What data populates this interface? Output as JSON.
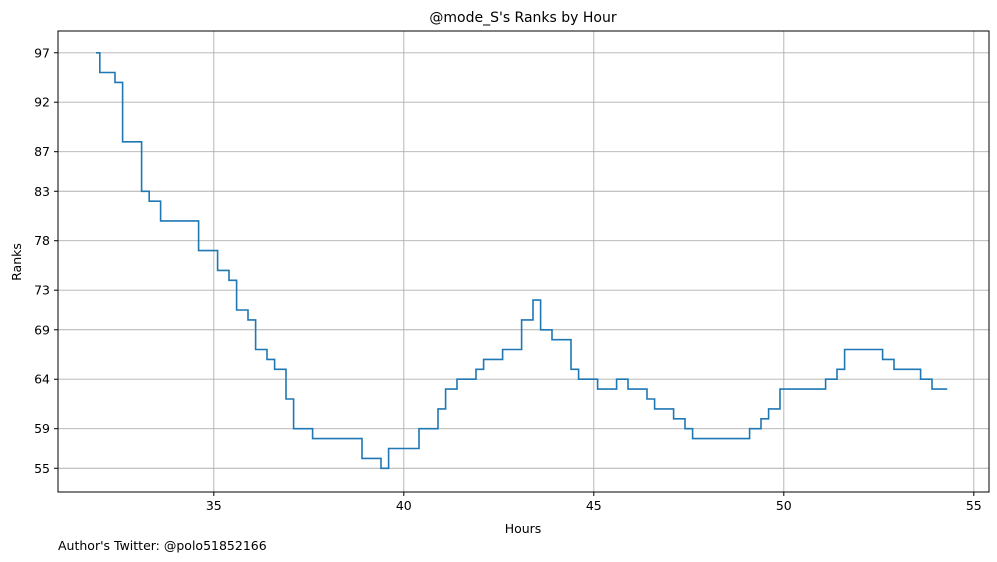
{
  "chart_data": {
    "type": "line",
    "title": "@mode_S's Ranks by Hour",
    "xlabel": "Hours",
    "ylabel": "Ranks",
    "xlim": [
      30.9,
      55.4
    ],
    "ylim": [
      99.2,
      52.6
    ],
    "y_inverted": true,
    "grid": true,
    "drawstyle": "steps-post",
    "line_color": "#1f77b4",
    "x_ticks": [
      35,
      40,
      45,
      50,
      55
    ],
    "y_tick_positions": [
      55,
      59,
      64,
      69,
      73,
      78,
      83,
      87,
      92,
      97
    ],
    "y_tick_labels": [
      "55",
      "59",
      "64",
      "69",
      "73",
      "78",
      "83",
      "87",
      "92",
      "97"
    ],
    "points": [
      [
        31.9,
        97
      ],
      [
        32.0,
        95
      ],
      [
        32.4,
        94
      ],
      [
        32.6,
        88
      ],
      [
        33.1,
        83
      ],
      [
        33.3,
        82
      ],
      [
        33.6,
        80
      ],
      [
        34.6,
        77
      ],
      [
        35.1,
        75
      ],
      [
        35.4,
        74
      ],
      [
        35.6,
        71
      ],
      [
        35.9,
        70
      ],
      [
        36.1,
        67
      ],
      [
        36.4,
        66
      ],
      [
        36.6,
        65
      ],
      [
        36.9,
        62
      ],
      [
        37.1,
        59
      ],
      [
        37.6,
        58
      ],
      [
        38.9,
        56
      ],
      [
        39.4,
        55
      ],
      [
        39.6,
        57
      ],
      [
        40.4,
        59
      ],
      [
        40.9,
        61
      ],
      [
        41.1,
        63
      ],
      [
        41.4,
        64
      ],
      [
        41.9,
        65
      ],
      [
        42.1,
        66
      ],
      [
        42.6,
        67
      ],
      [
        43.1,
        70
      ],
      [
        43.4,
        72
      ],
      [
        43.6,
        69
      ],
      [
        43.9,
        68
      ],
      [
        44.4,
        65
      ],
      [
        44.6,
        64
      ],
      [
        45.1,
        63
      ],
      [
        45.6,
        64
      ],
      [
        45.9,
        63
      ],
      [
        46.4,
        62
      ],
      [
        46.6,
        61
      ],
      [
        47.1,
        60
      ],
      [
        47.4,
        59
      ],
      [
        47.6,
        58
      ],
      [
        49.1,
        59
      ],
      [
        49.4,
        60
      ],
      [
        49.6,
        61
      ],
      [
        49.9,
        63
      ],
      [
        51.1,
        64
      ],
      [
        51.4,
        65
      ],
      [
        51.6,
        67
      ],
      [
        52.6,
        66
      ],
      [
        52.9,
        65
      ],
      [
        53.6,
        64
      ],
      [
        53.9,
        63
      ],
      [
        54.3,
        63
      ]
    ]
  },
  "footnote": "Author's Twitter: @polo51852166"
}
